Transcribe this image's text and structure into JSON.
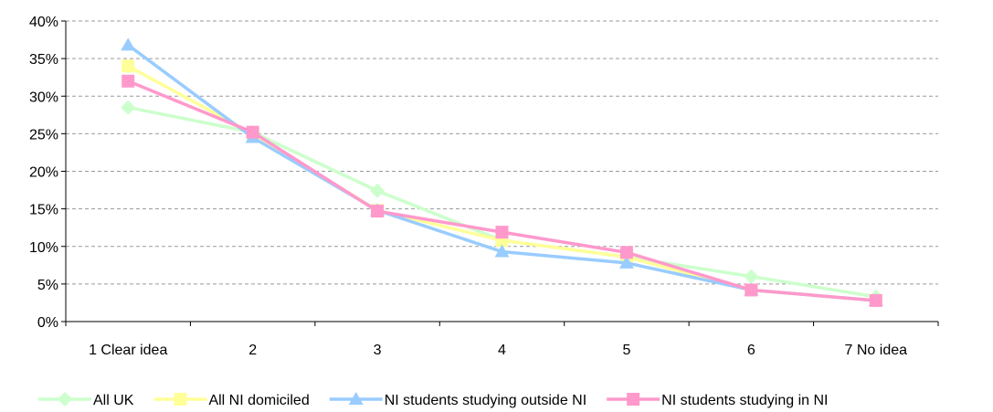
{
  "chart_data": {
    "type": "line",
    "title": "",
    "xlabel": "",
    "ylabel": "",
    "categories": [
      "1 Clear idea",
      "2",
      "3",
      "4",
      "5",
      "6",
      "7 No idea"
    ],
    "y_ticks": [
      "0%",
      "5%",
      "10%",
      "15%",
      "20%",
      "25%",
      "30%",
      "35%",
      "40%"
    ],
    "ylim": [
      0,
      40
    ],
    "y_unit": "%",
    "grid": "horizontal dashed",
    "legend_position": "bottom",
    "series": [
      {
        "name": "All UK",
        "values": [
          28.5,
          25.2,
          17.4,
          10.8,
          8.6,
          6.0,
          3.3
        ],
        "color": "#ccffcc",
        "marker": "diamond"
      },
      {
        "name": "All NI domiciled",
        "values": [
          34.0,
          25.0,
          14.8,
          10.8,
          8.6,
          4.2,
          2.8
        ],
        "color": "#ffff99",
        "marker": "square"
      },
      {
        "name": "NI students studying outside NI",
        "values": [
          36.8,
          24.5,
          14.8,
          9.3,
          7.8,
          4.2,
          2.8
        ],
        "color": "#99ccff",
        "marker": "triangle"
      },
      {
        "name": "NI students studying in NI",
        "values": [
          32.0,
          25.2,
          14.7,
          11.9,
          9.2,
          4.2,
          2.8
        ],
        "color": "#ff99cc",
        "marker": "square"
      }
    ]
  }
}
